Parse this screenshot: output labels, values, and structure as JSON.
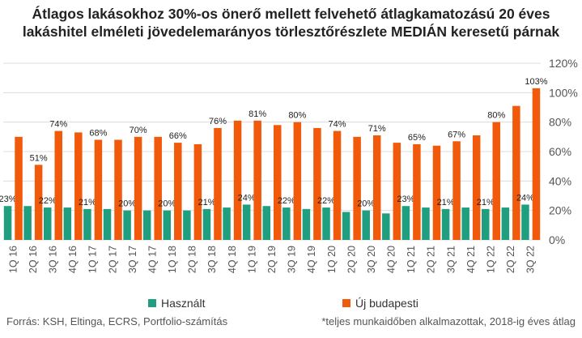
{
  "title_line1": "Átlagos lakásokhoz 30%-os önerő mellett felvehető átlagkamatozású 20 éves",
  "title_line2": "lakáshitel elméleti jövedelemarányos törlesztőrészlete MEDIÁN keresetű párnak",
  "source": "Forrás: KSH, Eltinga, ECRS, Portfolio-számítás",
  "footnote": "*teljes munkaidőben alkalmazottak, 2018-ig éves átlag",
  "colors": {
    "used": "#1f9f80",
    "new": "#f05a0a",
    "grid": "#dcdcdc"
  },
  "chart_data": {
    "type": "bar",
    "categories": [
      "1Q 16",
      "2Q 16",
      "3Q 16",
      "4Q 16",
      "1Q 17",
      "2Q 17",
      "3Q 17",
      "4Q 17",
      "1Q 18",
      "2Q 18",
      "3Q 18",
      "4Q 18",
      "1Q 19",
      "2Q 19",
      "3Q 19",
      "4Q 19",
      "1Q 20",
      "2Q 20",
      "3Q 20",
      "4Q 20",
      "1Q 21",
      "2Q 21",
      "3Q 21",
      "4Q 21",
      "1Q 22",
      "2Q 22",
      "3Q 22"
    ],
    "ylim": [
      0,
      120
    ],
    "yticks": [
      "0%",
      "20%",
      "40%",
      "60%",
      "80%",
      "100%",
      "120%"
    ],
    "series": [
      {
        "name": "Használt",
        "values": [
          23,
          23,
          22,
          22,
          21,
          21,
          20,
          20,
          20,
          20,
          21,
          22,
          24,
          23,
          22,
          21,
          22,
          19,
          20,
          18,
          23,
          22,
          21,
          22,
          21,
          22,
          24
        ],
        "labels": [
          "23%",
          "",
          "22%",
          "",
          "21%",
          "",
          "20%",
          "",
          "20%",
          "",
          "21%",
          "",
          "24%",
          "",
          "22%",
          "",
          "22%",
          "",
          "20%",
          "",
          "23%",
          "",
          "21%",
          "",
          "21%",
          "",
          "24%"
        ]
      },
      {
        "name": "Új budapesti",
        "values": [
          70,
          51,
          74,
          73,
          68,
          68,
          70,
          70,
          66,
          65,
          76,
          81,
          81,
          78,
          80,
          76,
          74,
          70,
          71,
          66,
          65,
          64,
          67,
          71,
          80,
          91,
          103
        ],
        "labels": [
          "",
          "51%",
          "74%",
          "",
          "68%",
          "",
          "70%",
          "",
          "66%",
          "",
          "76%",
          "",
          "81%",
          "",
          "80%",
          "",
          "74%",
          "",
          "71%",
          "",
          "65%",
          "",
          "67%",
          "",
          "80%",
          "",
          "103%"
        ]
      }
    ]
  }
}
